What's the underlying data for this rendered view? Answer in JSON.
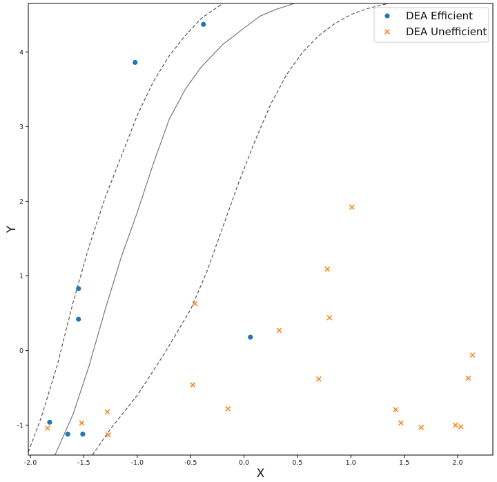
{
  "chart_data": {
    "type": "scatter",
    "title": "",
    "xlabel": "X",
    "ylabel": "Y",
    "xlim": [
      -2.02,
      2.33
    ],
    "ylim": [
      -1.4,
      4.65
    ],
    "xticks": [
      -2.0,
      -1.5,
      -1.0,
      -0.5,
      0.0,
      0.5,
      1.0,
      1.5,
      2.0
    ],
    "xtick_labels": [
      "-2.0",
      "-1.5",
      "-1.0",
      "-0.5",
      "0.0",
      "0.5",
      "1.0",
      "1.5",
      "2.0"
    ],
    "yticks": [
      -1,
      0,
      1,
      2,
      3,
      4
    ],
    "ytick_labels": [
      "-1",
      "0",
      "1",
      "2",
      "3",
      "4"
    ],
    "grid": false,
    "legend_position": "top-right",
    "series": [
      {
        "name": "DEA Efficient",
        "marker": "circle",
        "color": "#1f77b4",
        "points": [
          [
            -0.38,
            4.37
          ],
          [
            -1.02,
            3.86
          ],
          [
            -1.55,
            0.83
          ],
          [
            -1.55,
            0.42
          ],
          [
            0.06,
            0.18
          ],
          [
            -1.82,
            -0.96
          ],
          [
            -1.65,
            -1.12
          ],
          [
            -1.51,
            -1.12
          ]
        ]
      },
      {
        "name": "DEA Unefficient",
        "marker": "x",
        "color": "#ff7f0e",
        "points": [
          [
            1.01,
            1.92
          ],
          [
            0.78,
            1.09
          ],
          [
            0.8,
            0.44
          ],
          [
            -0.46,
            0.63
          ],
          [
            0.33,
            0.27
          ],
          [
            0.7,
            -0.38
          ],
          [
            -0.48,
            -0.46
          ],
          [
            -0.15,
            -0.78
          ],
          [
            2.14,
            -0.06
          ],
          [
            2.1,
            -0.37
          ],
          [
            1.42,
            -0.79
          ],
          [
            1.47,
            -0.97
          ],
          [
            1.66,
            -1.03
          ],
          [
            1.98,
            -1.0
          ],
          [
            2.03,
            -1.02
          ],
          [
            -1.84,
            -1.04
          ],
          [
            -1.52,
            -0.97
          ],
          [
            -1.28,
            -0.82
          ],
          [
            -1.27,
            -1.13
          ]
        ]
      }
    ],
    "lines": [
      {
        "style": "dashed",
        "color": "#555555",
        "points": [
          [
            -2.02,
            -1.36
          ],
          [
            -1.9,
            -0.9
          ],
          [
            -1.75,
            -0.2
          ],
          [
            -1.6,
            0.65
          ],
          [
            -1.45,
            1.4
          ],
          [
            -1.3,
            2.05
          ],
          [
            -1.15,
            2.6
          ],
          [
            -1.0,
            3.15
          ],
          [
            -0.85,
            3.6
          ],
          [
            -0.7,
            3.95
          ],
          [
            -0.55,
            4.22
          ],
          [
            -0.4,
            4.45
          ],
          [
            -0.2,
            4.65
          ]
        ]
      },
      {
        "style": "solid",
        "color": "#777777",
        "points": [
          [
            -1.77,
            -1.4
          ],
          [
            -1.6,
            -0.85
          ],
          [
            -1.45,
            -0.2
          ],
          [
            -1.3,
            0.55
          ],
          [
            -1.15,
            1.25
          ],
          [
            -1.0,
            1.85
          ],
          [
            -0.85,
            2.5
          ],
          [
            -0.7,
            3.1
          ],
          [
            -0.55,
            3.5
          ],
          [
            -0.4,
            3.8
          ],
          [
            -0.2,
            4.1
          ],
          [
            0.0,
            4.32
          ],
          [
            0.15,
            4.48
          ],
          [
            0.3,
            4.57
          ],
          [
            0.47,
            4.65
          ]
        ]
      },
      {
        "style": "dashed",
        "color": "#555555",
        "points": [
          [
            -1.42,
            -1.4
          ],
          [
            -1.25,
            -1.05
          ],
          [
            -1.0,
            -0.6
          ],
          [
            -0.75,
            -0.05
          ],
          [
            -0.5,
            0.55
          ],
          [
            -0.35,
            1.05
          ],
          [
            -0.2,
            1.65
          ],
          [
            -0.05,
            2.25
          ],
          [
            0.1,
            2.8
          ],
          [
            0.25,
            3.3
          ],
          [
            0.4,
            3.7
          ],
          [
            0.55,
            4.0
          ],
          [
            0.7,
            4.22
          ],
          [
            0.85,
            4.38
          ],
          [
            1.0,
            4.5
          ],
          [
            1.15,
            4.58
          ],
          [
            1.35,
            4.65
          ]
        ]
      }
    ]
  }
}
